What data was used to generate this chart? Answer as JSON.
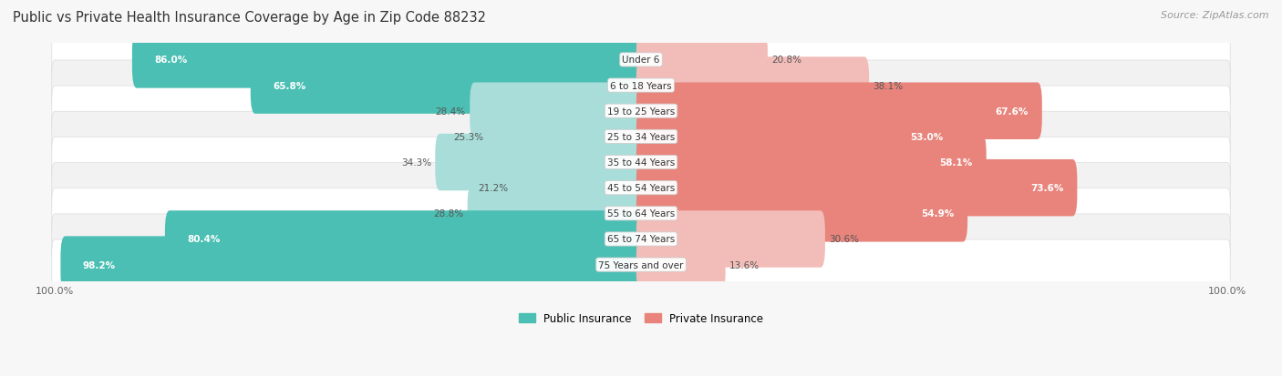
{
  "title": "Public vs Private Health Insurance Coverage by Age in Zip Code 88232",
  "source": "Source: ZipAtlas.com",
  "categories": [
    "Under 6",
    "6 to 18 Years",
    "19 to 25 Years",
    "25 to 34 Years",
    "35 to 44 Years",
    "45 to 54 Years",
    "55 to 64 Years",
    "65 to 74 Years",
    "75 Years and over"
  ],
  "public_values": [
    86.0,
    65.8,
    28.4,
    25.3,
    34.3,
    21.2,
    28.8,
    80.4,
    98.2
  ],
  "private_values": [
    20.8,
    38.1,
    67.6,
    53.0,
    58.1,
    73.6,
    54.9,
    30.6,
    13.6
  ],
  "public_color": "#4BBFB3",
  "private_color": "#E8847B",
  "public_color_light": "#A8DDD9",
  "private_color_light": "#F2BCB8",
  "row_bg_color_even": "#FFFFFF",
  "row_bg_color_odd": "#F2F2F2",
  "label_color_white": "#FFFFFF",
  "label_color_dark": "#555555",
  "title_color": "#333333",
  "source_color": "#999999",
  "max_value": 100.0,
  "bar_height": 0.62,
  "figsize": [
    14.06,
    4.14
  ],
  "dpi": 100,
  "bg_color": "#F7F7F7"
}
